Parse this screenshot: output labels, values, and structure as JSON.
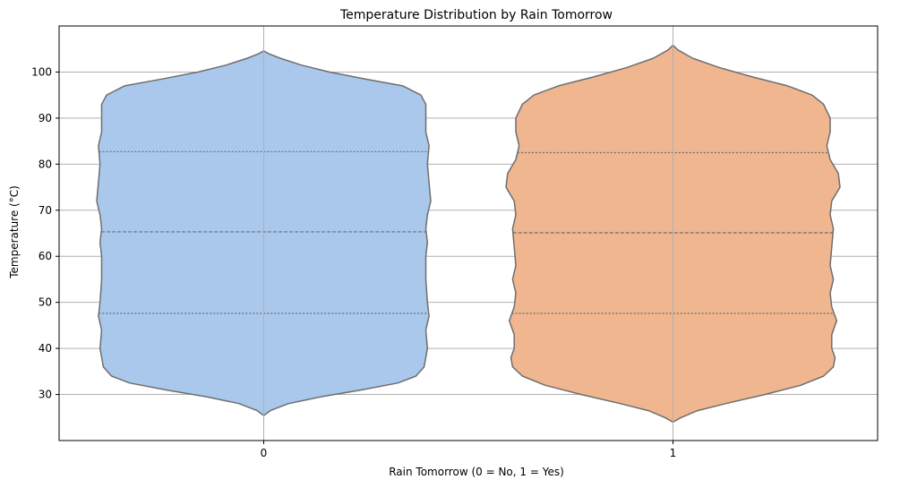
{
  "chart_data": {
    "type": "violin",
    "title": "Temperature Distribution by Rain Tomorrow",
    "xlabel": "Rain Tomorrow (0 = No, 1 = Yes)",
    "ylabel": "Temperature (°C)",
    "categories": [
      "0",
      "1"
    ],
    "ylim": [
      20,
      110
    ],
    "yticks": [
      30,
      40,
      50,
      60,
      70,
      80,
      90,
      100
    ],
    "grid": true,
    "colors": [
      "#a9c8ec",
      "#efb690"
    ],
    "outline_color": "#6e6e6e",
    "grid_color": "#b0b0b0",
    "series": [
      {
        "category": "0",
        "min": 25.4,
        "q1": 47.6,
        "median": 65.3,
        "q3": 82.7,
        "max": 104.6,
        "profile": [
          [
            25.4,
            0.0
          ],
          [
            26.5,
            0.04
          ],
          [
            28,
            0.15
          ],
          [
            29.5,
            0.35
          ],
          [
            31,
            0.6
          ],
          [
            32.5,
            0.82
          ],
          [
            34,
            0.93
          ],
          [
            36,
            0.98
          ],
          [
            40,
            1.0
          ],
          [
            44,
            0.99
          ],
          [
            47,
            1.01
          ],
          [
            50,
            1.0
          ],
          [
            55,
            0.99
          ],
          [
            60,
            0.99
          ],
          [
            63,
            1.0
          ],
          [
            66,
            0.99
          ],
          [
            69,
            1.0
          ],
          [
            72,
            1.02
          ],
          [
            76,
            1.01
          ],
          [
            80,
            1.0
          ],
          [
            84,
            1.01
          ],
          [
            87,
            0.99
          ],
          [
            90,
            0.99
          ],
          [
            93,
            0.99
          ],
          [
            95,
            0.96
          ],
          [
            97,
            0.85
          ],
          [
            98.5,
            0.62
          ],
          [
            100,
            0.4
          ],
          [
            101.5,
            0.23
          ],
          [
            103,
            0.1
          ],
          [
            104,
            0.03
          ],
          [
            104.6,
            0.0
          ]
        ]
      },
      {
        "category": "1",
        "min": 24.0,
        "q1": 47.6,
        "median": 65.1,
        "q3": 82.5,
        "max": 105.8,
        "profile": [
          [
            24,
            0.0
          ],
          [
            25,
            0.05
          ],
          [
            26.5,
            0.15
          ],
          [
            28,
            0.32
          ],
          [
            30,
            0.56
          ],
          [
            32,
            0.78
          ],
          [
            34,
            0.92
          ],
          [
            36,
            0.98
          ],
          [
            38,
            0.99
          ],
          [
            40,
            0.97
          ],
          [
            43,
            0.97
          ],
          [
            46,
            1.0
          ],
          [
            49,
            0.97
          ],
          [
            52,
            0.96
          ],
          [
            55,
            0.98
          ],
          [
            58,
            0.96
          ],
          [
            62,
            0.97
          ],
          [
            66,
            0.98
          ],
          [
            69,
            0.96
          ],
          [
            72,
            0.97
          ],
          [
            75,
            1.02
          ],
          [
            78,
            1.01
          ],
          [
            81,
            0.96
          ],
          [
            84,
            0.94
          ],
          [
            87,
            0.96
          ],
          [
            90,
            0.96
          ],
          [
            93,
            0.92
          ],
          [
            95,
            0.85
          ],
          [
            97,
            0.7
          ],
          [
            99,
            0.48
          ],
          [
            101,
            0.28
          ],
          [
            103,
            0.12
          ],
          [
            104.8,
            0.03
          ],
          [
            105.8,
            0.0
          ]
        ]
      }
    ]
  }
}
